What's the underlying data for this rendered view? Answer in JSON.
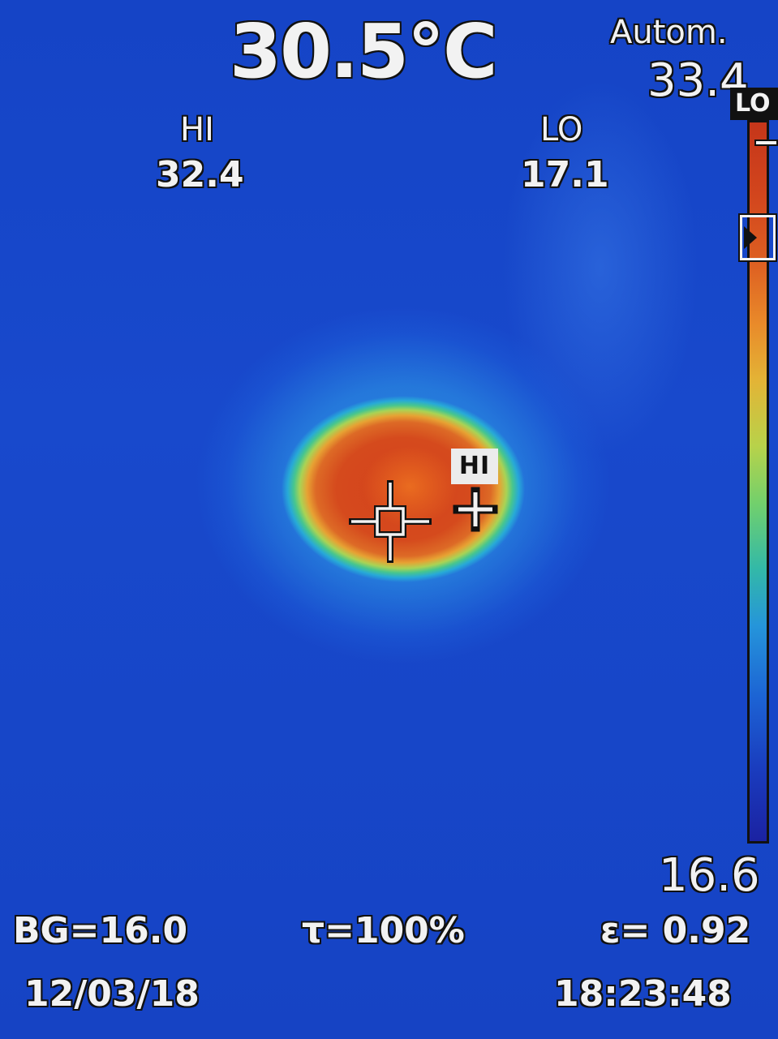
{
  "readouts": {
    "center_temperature": "30.5°C",
    "range_mode": "Autom.",
    "scale_max": "33.4",
    "scale_min": "16.6",
    "hi_label": "HI",
    "hi_value": "32.4",
    "lo_label": "LO",
    "lo_value": "17.1",
    "lo_tag": "LO",
    "hi_spot_tag": "HI",
    "background_temp": "BG=16.0",
    "transmission": "τ=100%",
    "emissivity": "ε= 0.92",
    "date": "12/03/18",
    "time": "18:23:48"
  },
  "palette": {
    "hot": "#d4421c",
    "warm": "#e98a2a",
    "mid": "#72d06c",
    "cool": "#2595da",
    "cold": "#1b22a2",
    "background": "#1446c8"
  },
  "icons": {
    "center_spot": "crosshair-square-icon",
    "hot_spot": "plus-cross-icon",
    "scale_pointer": "triangle-right-icon"
  }
}
